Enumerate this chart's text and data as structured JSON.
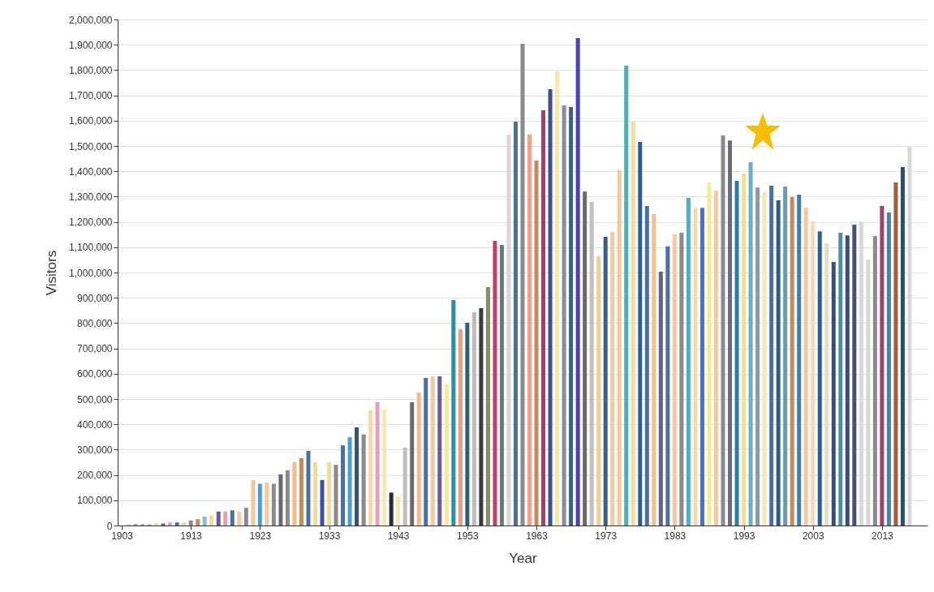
{
  "chart_data": {
    "type": "bar",
    "xlabel": "Year",
    "ylabel": "Visitors",
    "x": [
      1903,
      1904,
      1905,
      1906,
      1907,
      1908,
      1909,
      1910,
      1911,
      1912,
      1913,
      1914,
      1915,
      1916,
      1917,
      1918,
      1919,
      1920,
      1921,
      1922,
      1923,
      1924,
      1925,
      1926,
      1927,
      1928,
      1929,
      1930,
      1931,
      1932,
      1933,
      1934,
      1935,
      1936,
      1937,
      1938,
      1939,
      1940,
      1941,
      1942,
      1943,
      1944,
      1945,
      1946,
      1947,
      1948,
      1949,
      1950,
      1951,
      1952,
      1953,
      1954,
      1955,
      1956,
      1957,
      1958,
      1959,
      1960,
      1961,
      1962,
      1963,
      1964,
      1965,
      1966,
      1967,
      1968,
      1969,
      1970,
      1971,
      1972,
      1973,
      1974,
      1975,
      1976,
      1977,
      1978,
      1979,
      1980,
      1981,
      1982,
      1983,
      1984,
      1985,
      1986,
      1987,
      1988,
      1989,
      1990,
      1991,
      1992,
      1993,
      1994,
      1995,
      1996,
      1997,
      1998,
      1999,
      2000,
      2001,
      2002,
      2003,
      2004,
      2005,
      2006,
      2007,
      2008,
      2009,
      2010,
      2011,
      2012,
      2013,
      2014,
      2015,
      2016,
      2017
    ],
    "values": [
      0,
      5000,
      5000,
      5000,
      5000,
      10000,
      8000,
      12000,
      12000,
      12000,
      20000,
      25000,
      35000,
      40000,
      55000,
      55000,
      60000,
      55000,
      70000,
      180000,
      165000,
      170000,
      165000,
      202000,
      218000,
      250000,
      266000,
      295000,
      250000,
      180000,
      250000,
      240000,
      317000,
      349000,
      388000,
      360000,
      455000,
      488000,
      460000,
      130000,
      115000,
      308000,
      487000,
      526000,
      583000,
      590000,
      590000,
      558000,
      891000,
      776000,
      801000,
      843000,
      859000,
      942000,
      1125000,
      1109000,
      1545000,
      1596000,
      1904000,
      1545000,
      1442000,
      1641000,
      1724000,
      1795000,
      1660000,
      1654000,
      1926000,
      1320000,
      1279000,
      1064000,
      1141000,
      1160000,
      1404000,
      1817000,
      1596000,
      1516000,
      1263000,
      1231000,
      1003000,
      1103000,
      1151000,
      1157000,
      1295000,
      1256000,
      1256000,
      1356000,
      1324000,
      1542000,
      1522000,
      1362000,
      1391000,
      1436000,
      1336000,
      1317000,
      1343000,
      1285000,
      1340000,
      1298000,
      1308000,
      1256000,
      1202000,
      1163000,
      1115000,
      1042000,
      1157000,
      1147000,
      1189000,
      1200000,
      1051000,
      1144000,
      1263000,
      1237000,
      1356000,
      1417000,
      1497000
    ],
    "colors": [
      "#4a6fa5",
      "#f5c9a0",
      "#8a8a8a",
      "#c98a5a",
      "#7fbfdc",
      "#f2dc9c",
      "#6b5b95",
      "#e8a0b4",
      "#4a6fa5",
      "#f5c9a0",
      "#8a8a8a",
      "#c98a5a",
      "#7fbfdc",
      "#f2dc9c",
      "#6b5b95",
      "#e8a0b4",
      "#4a6fa5",
      "#f5c9a0",
      "#8a8a8a",
      "#f5c9a0",
      "#4a9fd5",
      "#f5c9a0",
      "#8a8a8a",
      "#6a6a6a",
      "#8a8a8a",
      "#f5b98a",
      "#c98a5a",
      "#4a6fa5",
      "#f2dc9c",
      "#3a4fa5",
      "#f2dc9c",
      "#8a8a8a",
      "#4a6fa5",
      "#4a9fd5",
      "#3a4f75",
      "#8a8a8a",
      "#f5d9a8",
      "#e8a0b4",
      "#f5e9b8",
      "#2a2a3a",
      "#f5e9b8",
      "#bdbdbd",
      "#6a6a6a",
      "#f5b98a",
      "#4a6fa5",
      "#f5c9a0",
      "#6b5b95",
      "#f2ec9c",
      "#2a8fa5",
      "#f09a80",
      "#2a5f75",
      "#bdbdbd",
      "#3a3a3a",
      "#8a8a6a",
      "#c0406a",
      "#6a7a7a",
      "#d8d8d8",
      "#4a6fa5",
      "#8a8a8a",
      "#f5a080",
      "#c98a5a",
      "#a0406a",
      "#3a4f95",
      "#f5e9a8",
      "#8a8aa5",
      "#3a5f85",
      "#4a3fb5",
      "#6a6a6a",
      "#c0c0c0",
      "#f5d090",
      "#3a5f85",
      "#f5c9a0",
      "#f5c9a0",
      "#4ab0b5",
      "#f5dca0",
      "#2a5f95",
      "#4a6fa5",
      "#f5c090",
      "#6b5b95",
      "#4a6fa5",
      "#f5c9a0",
      "#8a8a8a",
      "#4ab0c5",
      "#f5d9a8",
      "#4a6fcf",
      "#f2ec9c",
      "#f5c9a0",
      "#8a8a8a",
      "#6a6a7a",
      "#2a7fa5",
      "#f5e090",
      "#6ab0c5",
      "#8a9aa5",
      "#f5e9b8",
      "#4a6fa5",
      "#2a5f95",
      "#6a9ab5",
      "#c98a5a",
      "#3a7fb5",
      "#f5c9a0",
      "#f5d9b8",
      "#2a5f95",
      "#e0e0c0",
      "#3a4f75",
      "#4a8fa5",
      "#3a4f75",
      "#4a4f75",
      "#d8d8d8",
      "#d8d8d8",
      "#8a8a8a",
      "#a0406a",
      "#4a7fb5",
      "#a0603a",
      "#2a4f75",
      "#d8d8d8"
    ],
    "xlim": [
      1903,
      2019
    ],
    "xticks": [
      1903,
      1913,
      1923,
      1933,
      1943,
      1953,
      1963,
      1973,
      1983,
      1993,
      2003,
      2013
    ],
    "ylim": [
      0,
      2000000
    ],
    "yticks": [
      {
        "value": 0,
        "label": "0"
      },
      {
        "value": 100000,
        "label": "100,000"
      },
      {
        "value": 200000,
        "label": "200,000"
      },
      {
        "value": 300000,
        "label": "300,000"
      },
      {
        "value": 400000,
        "label": "400,000"
      },
      {
        "value": 500000,
        "label": "500,000"
      },
      {
        "value": 600000,
        "label": "600,000"
      },
      {
        "value": 700000,
        "label": "700,000"
      },
      {
        "value": 800000,
        "label": "800,000"
      },
      {
        "value": 900000,
        "label": "900,000"
      },
      {
        "value": 1000000,
        "label": "1,000,000"
      },
      {
        "value": 1100000,
        "label": "1,100,000"
      },
      {
        "value": 1200000,
        "label": "1,200,000"
      },
      {
        "value": 1300000,
        "label": "1,300,000"
      },
      {
        "value": 1400000,
        "label": "1,400,000"
      },
      {
        "value": 1500000,
        "label": "1,500,000"
      },
      {
        "value": 1600000,
        "label": "1,600,000"
      },
      {
        "value": 1700000,
        "label": "1,700,000"
      },
      {
        "value": 1800000,
        "label": "1,800,000"
      },
      {
        "value": 1900000,
        "label": "1,900,000"
      },
      {
        "value": 2000000,
        "label": "2,000,000"
      }
    ],
    "grid": "y"
  }
}
